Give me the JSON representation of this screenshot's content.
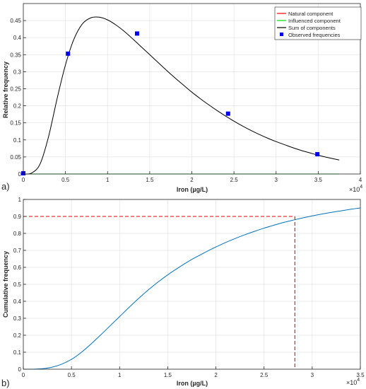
{
  "colors": {
    "natural": "#ff0000",
    "influenced": "#00dd00",
    "sum": "#000000",
    "observed": "#0000ee",
    "cdf": "#0072bd",
    "threshold": "#ff0000",
    "grid": "#e3e3e3",
    "axis": "#262626"
  },
  "chart_data": [
    {
      "type": "line",
      "panel_label": "a)",
      "xlabel": "Iron (µg/L)",
      "ylabel": "Relative frequency",
      "x_exponent": "×10",
      "x_exponent_power": "4",
      "xlim": [
        0,
        40000
      ],
      "ylim": [
        0,
        0.5
      ],
      "x_ticks": [
        0,
        10000,
        20000,
        30000,
        40000
      ],
      "x_tick_labels": [
        "0",
        "0.5",
        "1",
        "1.5",
        "2",
        "2.5",
        "3",
        "3.5",
        "4"
      ],
      "x_tick_values": [
        0,
        5000,
        10000,
        15000,
        20000,
        25000,
        30000,
        35000,
        40000
      ],
      "y_tick_values": [
        0,
        0.05,
        0.1,
        0.15,
        0.2,
        0.25,
        0.3,
        0.35,
        0.4,
        0.45
      ],
      "y_tick_labels": [
        "0",
        "0.05",
        "0.1",
        "0.15",
        "0.2",
        "0.25",
        "0.3",
        "0.35",
        "0.4",
        "0.45"
      ],
      "grid": true,
      "legend": {
        "placement": "top-right",
        "entries": [
          "Natural component",
          "Influenced component",
          "Sum of components",
          "Observed frequencies"
        ]
      },
      "series": [
        {
          "name": "Natural component",
          "x": [
            0,
            37500
          ],
          "y": [
            0,
            0
          ]
        },
        {
          "name": "Influenced component",
          "x": [
            0,
            37500
          ],
          "y": [
            0,
            0
          ]
        },
        {
          "name": "Sum of components",
          "x": [
            0,
            1000,
            2000,
            3000,
            4000,
            5000,
            6000,
            7000,
            8000,
            9000,
            10000,
            11000,
            12000,
            13000,
            14000,
            15000,
            16000,
            17000,
            18000,
            19000,
            20000,
            21000,
            22000,
            23000,
            24000,
            25000,
            26000,
            27000,
            28000,
            29000,
            30000,
            31000,
            32000,
            33000,
            34000,
            35000,
            36000,
            37500
          ],
          "y": [
            0,
            0.003,
            0.03,
            0.11,
            0.22,
            0.32,
            0.395,
            0.44,
            0.458,
            0.46,
            0.452,
            0.437,
            0.418,
            0.396,
            0.373,
            0.35,
            0.327,
            0.304,
            0.282,
            0.261,
            0.24,
            0.221,
            0.203,
            0.186,
            0.17,
            0.155,
            0.141,
            0.128,
            0.116,
            0.105,
            0.095,
            0.086,
            0.077,
            0.069,
            0.062,
            0.055,
            0.049,
            0.041
          ]
        },
        {
          "name": "Observed frequencies",
          "x": [
            0,
            5300,
            13500,
            24300,
            34900
          ],
          "y": [
            0.002,
            0.353,
            0.412,
            0.177,
            0.058
          ]
        }
      ]
    },
    {
      "type": "line",
      "panel_label": "b)",
      "xlabel": "Iron (µg/L)",
      "ylabel": "Cumulative frequency",
      "x_exponent": "×10",
      "x_exponent_power": "4",
      "xlim": [
        0,
        35000
      ],
      "ylim": [
        0,
        1
      ],
      "x_tick_values": [
        0,
        5000,
        10000,
        15000,
        20000,
        25000,
        30000,
        35000
      ],
      "x_tick_labels": [
        "0",
        "0.5",
        "1",
        "1.5",
        "2",
        "2.5",
        "3",
        "3.5"
      ],
      "y_tick_values": [
        0,
        0.1,
        0.2,
        0.3,
        0.4,
        0.5,
        0.6,
        0.7,
        0.8,
        0.9,
        1
      ],
      "y_tick_labels": [
        "0",
        "0.1",
        "0.2",
        "0.3",
        "0.4",
        "0.5",
        "0.6",
        "0.7",
        "0.8",
        "0.9",
        "1"
      ],
      "grid": true,
      "threshold": {
        "x": 28200,
        "y": 0.9
      },
      "series": [
        {
          "x": [
            0,
            1000,
            2000,
            3000,
            4000,
            5000,
            6000,
            7000,
            8000,
            9000,
            10000,
            11000,
            12000,
            13000,
            14000,
            15000,
            16000,
            17000,
            18000,
            19000,
            20000,
            21000,
            22000,
            23000,
            24000,
            25000,
            26000,
            27000,
            28000,
            29000,
            30000,
            31000,
            32000,
            33000,
            34000,
            35000
          ],
          "y": [
            0,
            0,
            0.003,
            0.012,
            0.03,
            0.058,
            0.098,
            0.147,
            0.2,
            0.255,
            0.31,
            0.365,
            0.418,
            0.468,
            0.514,
            0.556,
            0.594,
            0.63,
            0.662,
            0.692,
            0.72,
            0.746,
            0.77,
            0.792,
            0.812,
            0.831,
            0.848,
            0.864,
            0.878,
            0.891,
            0.903,
            0.914,
            0.924,
            0.933,
            0.942,
            0.95
          ]
        }
      ]
    }
  ]
}
